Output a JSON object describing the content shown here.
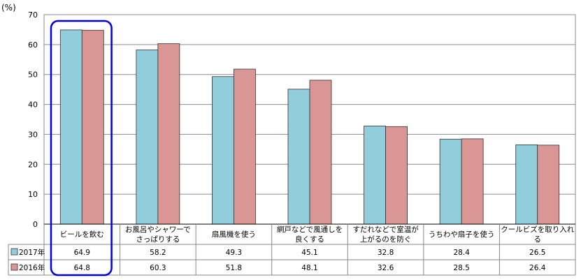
{
  "chart_data": {
    "type": "bar",
    "unit_label": "(%)",
    "ylim": [
      0,
      70
    ],
    "yticks": [
      0,
      10,
      20,
      30,
      40,
      50,
      60,
      70
    ],
    "categories": [
      [
        "ビールを飲む"
      ],
      [
        "お風呂やシャワーで",
        "さっぱりする"
      ],
      [
        "扇風機を使う"
      ],
      [
        "網戸などで風通しを",
        "良くする"
      ],
      [
        "すだれなどで室温が",
        "上がるのを防ぐ"
      ],
      [
        "うちわや扇子を使う"
      ],
      [
        "クールビズを取り入れ",
        "る"
      ]
    ],
    "series": [
      {
        "name": "2017年",
        "color": "#92cddc",
        "values": [
          64.9,
          58.2,
          49.3,
          45.1,
          32.8,
          28.4,
          26.5
        ]
      },
      {
        "name": "2016年",
        "color": "#d99694",
        "values": [
          64.8,
          60.3,
          51.8,
          48.1,
          32.6,
          28.5,
          26.4
        ]
      }
    ],
    "highlight": {
      "category_index": 0,
      "color": "#0000dd"
    },
    "grid": true,
    "legend": "data-table"
  }
}
